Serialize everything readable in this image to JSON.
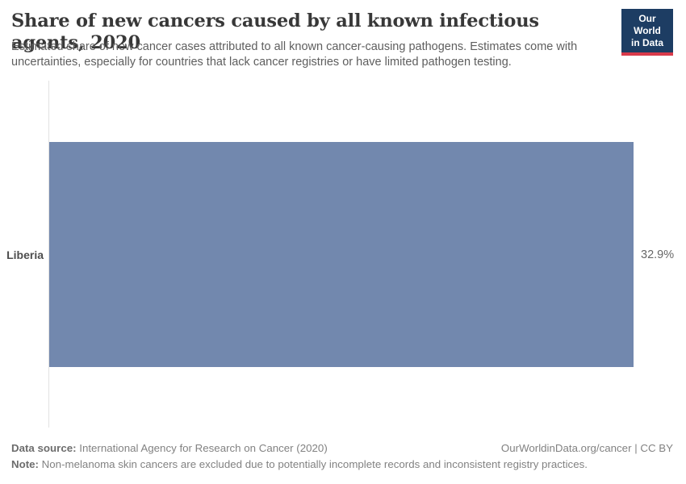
{
  "header": {
    "title": "Share of new cancers caused by all known infectious agents, 2020",
    "subtitle": "Estimated share of new cancer cases attributed to all known cancer-causing pathogens. Estimates come with uncertainties, especially for countries that lack cancer registries or have limited pathogen testing.",
    "logo": {
      "line1": "Our World",
      "line2": "in Data",
      "bg_color": "#1d3d63",
      "accent_color": "#d93a4a"
    }
  },
  "chart_data": {
    "type": "bar",
    "orientation": "horizontal",
    "title": "Share of new cancers caused by all known infectious agents, 2020",
    "categories": [
      "Liberia"
    ],
    "values": [
      32.9
    ],
    "value_labels": [
      "32.9%"
    ],
    "xlabel": "",
    "ylabel": "",
    "xlim": [
      0,
      32.9
    ],
    "grid": false,
    "legend": false,
    "bar_color": "#7288ae",
    "axis_line_color": "#e2e2e2"
  },
  "footer": {
    "data_source_label": "Data source:",
    "data_source": " International Agency for Research on Cancer (2020)",
    "attribution": "OurWorldinData.org/cancer | CC BY",
    "note_label": "Note:",
    "note": " Non-melanoma skin cancers are excluded due to potentially incomplete records and inconsistent registry practices."
  }
}
